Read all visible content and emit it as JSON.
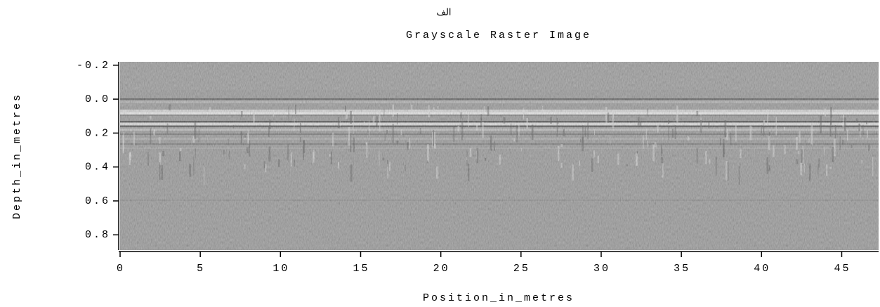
{
  "chart_data": {
    "type": "raster",
    "title": "الف",
    "subtitle": "Grayscale Raster Image",
    "x_label": "Position_in_metres",
    "y_label": "Depth_in_metres",
    "xlim": [
      0,
      47.3
    ],
    "xticks": [
      0,
      5,
      10,
      15,
      20,
      25,
      30,
      35,
      40,
      45
    ],
    "ylim": [
      -0.22,
      0.89
    ],
    "y_inverted": true,
    "yticks": [
      -0.2,
      {
        "value": 0,
        "label": "0.0"
      },
      0.2,
      0.4,
      0.6,
      0.8
    ],
    "colormap": "gray"
  }
}
